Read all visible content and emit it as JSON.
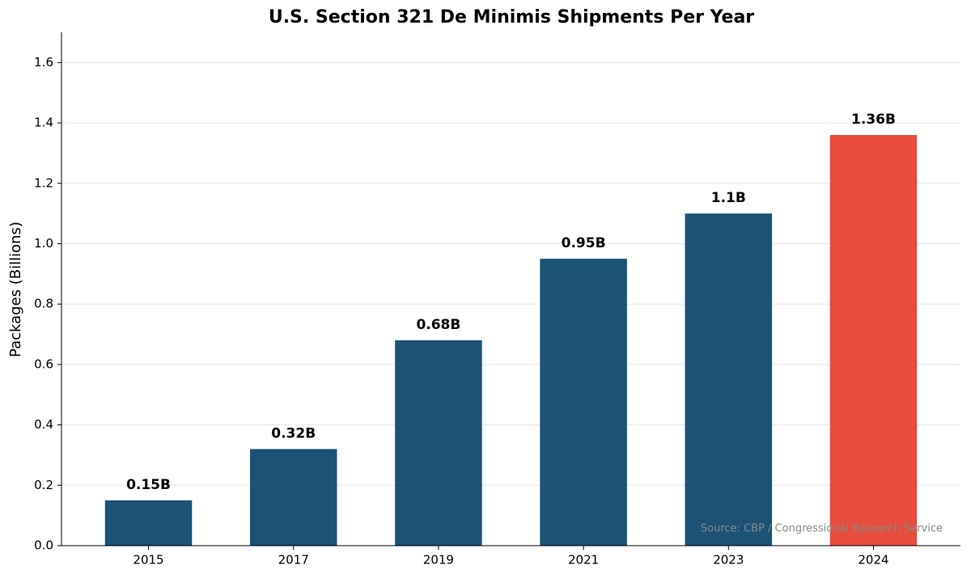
{
  "chart_data": {
    "type": "bar",
    "title": "U.S. Section 321 De Minimis Shipments Per Year",
    "y_label": "Packages (Billions)",
    "source": "Source: CBP / Congressional Research Service",
    "categories": [
      "2015",
      "2017",
      "2019",
      "2021",
      "2023",
      "2024"
    ],
    "values": [
      0.15,
      0.32,
      0.68,
      0.95,
      1.1,
      1.36
    ],
    "value_labels": [
      "0.15B",
      "0.32B",
      "0.68B",
      "0.95B",
      "1.1B",
      "1.36B"
    ],
    "colors": [
      "#1c5276",
      "#1c5276",
      "#1c5276",
      "#1c5276",
      "#1c5276",
      "#e74c3c"
    ],
    "ylim": [
      0,
      1.7
    ],
    "yticks": [
      {
        "value": 0,
        "label": "0.0"
      },
      0.2,
      0.4,
      0.6,
      0.8,
      {
        "value": 1,
        "label": "1.0"
      },
      1.2,
      1.4,
      1.6
    ],
    "grid": true
  }
}
